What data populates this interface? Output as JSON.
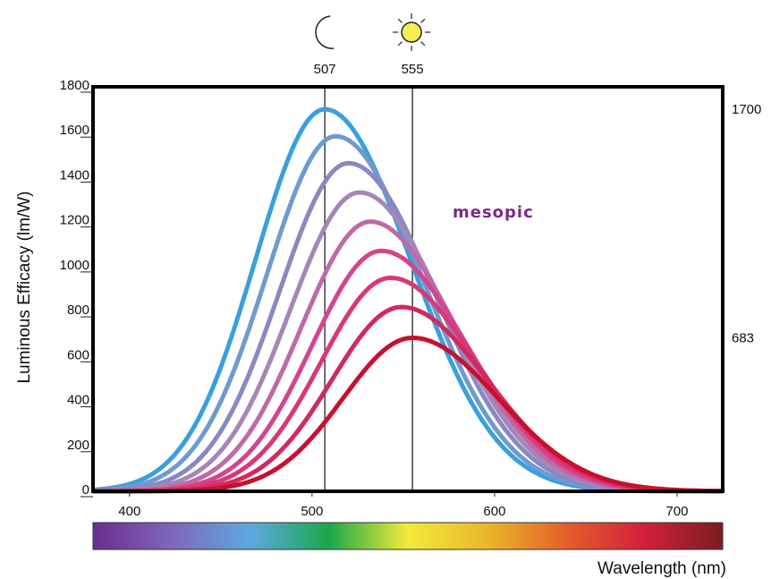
{
  "chart_data": {
    "type": "line",
    "ylabel": "Luminous Efficacy (lm/W)",
    "xlabel": "Wavelength (nm)",
    "xlim": [
      380,
      725
    ],
    "ylim": [
      0,
      1800
    ],
    "xticks": [
      400,
      500,
      600,
      700
    ],
    "yticks": [
      0,
      200,
      400,
      600,
      800,
      1000,
      1200,
      1400,
      1600,
      1800
    ],
    "right_axis_labels": [
      1700,
      683
    ],
    "reference_lines": [
      {
        "x": 507,
        "label": "507",
        "icon": "moon-icon"
      },
      {
        "x": 555,
        "label": "555",
        "icon": "sun-icon"
      }
    ],
    "annotation": "mesopic",
    "series": [
      {
        "peak_x": 507,
        "peak_y": 1700,
        "color": "#3aa0dc"
      },
      {
        "peak_x": 513,
        "peak_y": 1580,
        "color": "#6f9ad0"
      },
      {
        "peak_x": 520,
        "peak_y": 1460,
        "color": "#8a88c2"
      },
      {
        "peak_x": 526,
        "peak_y": 1330,
        "color": "#a586b8"
      },
      {
        "peak_x": 532,
        "peak_y": 1200,
        "color": "#be6aa6"
      },
      {
        "peak_x": 538,
        "peak_y": 1070,
        "color": "#d4458e"
      },
      {
        "peak_x": 543,
        "peak_y": 950,
        "color": "#d83878"
      },
      {
        "peak_x": 549,
        "peak_y": 820,
        "color": "#d22860"
      },
      {
        "peak_x": 555,
        "peak_y": 683,
        "color": "#c8102e"
      }
    ],
    "colorbar": {
      "stops": [
        "#6a2c8e",
        "#7d68b8",
        "#5ea9e0",
        "#1aa84a",
        "#f3ea3a",
        "#e8b82a",
        "#e4602a",
        "#d2203a",
        "#7a1e1e"
      ]
    }
  }
}
